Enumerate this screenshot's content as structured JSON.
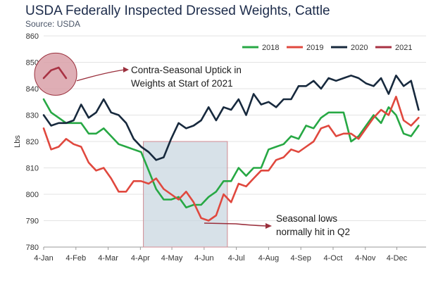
{
  "title": "USDA Federally Inspected Dressed Weights, Cattle",
  "subtitle": "Source: USDA",
  "chart_data": {
    "type": "line",
    "ylabel": "Lbs",
    "ylim": [
      780,
      860
    ],
    "yticks": [
      780,
      790,
      800,
      810,
      820,
      830,
      840,
      850,
      860
    ],
    "xlim": [
      0,
      51
    ],
    "xtick_positions": [
      0,
      4.3,
      8.6,
      12.9,
      17.1,
      21.4,
      25.7,
      30.0,
      34.3,
      38.6,
      42.9,
      47.1
    ],
    "xtick_labels": [
      "4-Jan",
      "4-Feb",
      "4-Mar",
      "4-Apr",
      "4-May",
      "4-Jun",
      "4-Jul",
      "4-Aug",
      "4-Sep",
      "4-Oct",
      "4-Nov",
      "4-Dec"
    ],
    "grid": "horizontal",
    "legend": "top-right",
    "series": [
      {
        "name": "2018",
        "color": "#27a844",
        "values": [
          836,
          831,
          829,
          827,
          827,
          827,
          823,
          823,
          825,
          822,
          819,
          818,
          817,
          816,
          809,
          802,
          798,
          798,
          799,
          795,
          796,
          796,
          799,
          801,
          805,
          805,
          810,
          807,
          810,
          810,
          817,
          818,
          819,
          822,
          821,
          826,
          825,
          829,
          831,
          831,
          831,
          820,
          822,
          826,
          830,
          827,
          833,
          830,
          823,
          822,
          826
        ]
      },
      {
        "name": "2019",
        "color": "#e0483e",
        "values": [
          825,
          817,
          818,
          821,
          819,
          818,
          812,
          809,
          810,
          806,
          801,
          801,
          805,
          805,
          804,
          806,
          802,
          800,
          798,
          801,
          797,
          791,
          790,
          792,
          800,
          797,
          804,
          803,
          806,
          809,
          809,
          813,
          814,
          817,
          816,
          818,
          820,
          825,
          826,
          822,
          823,
          823,
          821,
          825,
          829,
          832,
          830,
          837,
          828,
          826,
          829
        ]
      },
      {
        "name": "2020",
        "color": "#17293d",
        "values": [
          830,
          826,
          827,
          827,
          828,
          834,
          829,
          831,
          836,
          831,
          830,
          827,
          821,
          818,
          816,
          813,
          814,
          821,
          827,
          825,
          826,
          828,
          833,
          828,
          833,
          832,
          836,
          830,
          838,
          834,
          835,
          833,
          836,
          836,
          841,
          841,
          843,
          840,
          844,
          843,
          844,
          845,
          844,
          842,
          841,
          844,
          838,
          845,
          841,
          843,
          832
        ]
      },
      {
        "name": "2021",
        "color": "#a83243",
        "values": [
          844,
          847,
          848,
          844
        ]
      }
    ],
    "annotations": [
      {
        "text_lines": [
          "Contra-Seasonal Uptick in",
          "Weights at Start of 2021"
        ]
      },
      {
        "text_lines": [
          "Seasonal lows",
          "normally hit in Q2"
        ]
      }
    ]
  }
}
